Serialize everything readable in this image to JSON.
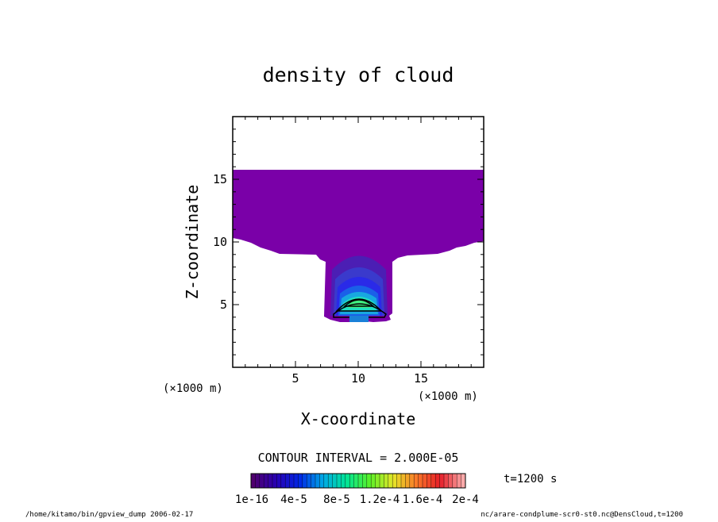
{
  "chart_data": {
    "type": "heatmap",
    "title": "density of cloud",
    "xlabel": "X-coordinate",
    "ylabel": "Z-coordinate",
    "xlim": [
      0,
      20
    ],
    "ylim": [
      0,
      20
    ],
    "x_ticks": [
      "5",
      "10",
      "15"
    ],
    "y_ticks": [
      "5",
      "10",
      "15"
    ],
    "x_scale_label": "(×1000 m)",
    "y_scale_label": "(×1000 m)",
    "contour_interval_text": "CONTOUR INTERVAL = 2.000E-05",
    "time_label": "t=1200 s",
    "colorbar_labels": [
      "1e-16",
      "4e-5",
      "8e-5",
      "1.2e-4",
      "1.6e-4",
      "2e-4"
    ],
    "colorbar_range": [
      0,
      0.0002
    ],
    "footer_left": "/home/kitamo/bin/gpview_dump  2006-02-17",
    "footer_right": "nc/arare-condplume-scr0-st0.nc@DensCloud,t=1200",
    "colors": {
      "background_fill": "#7a00a8",
      "contour_line": "#000000"
    }
  }
}
